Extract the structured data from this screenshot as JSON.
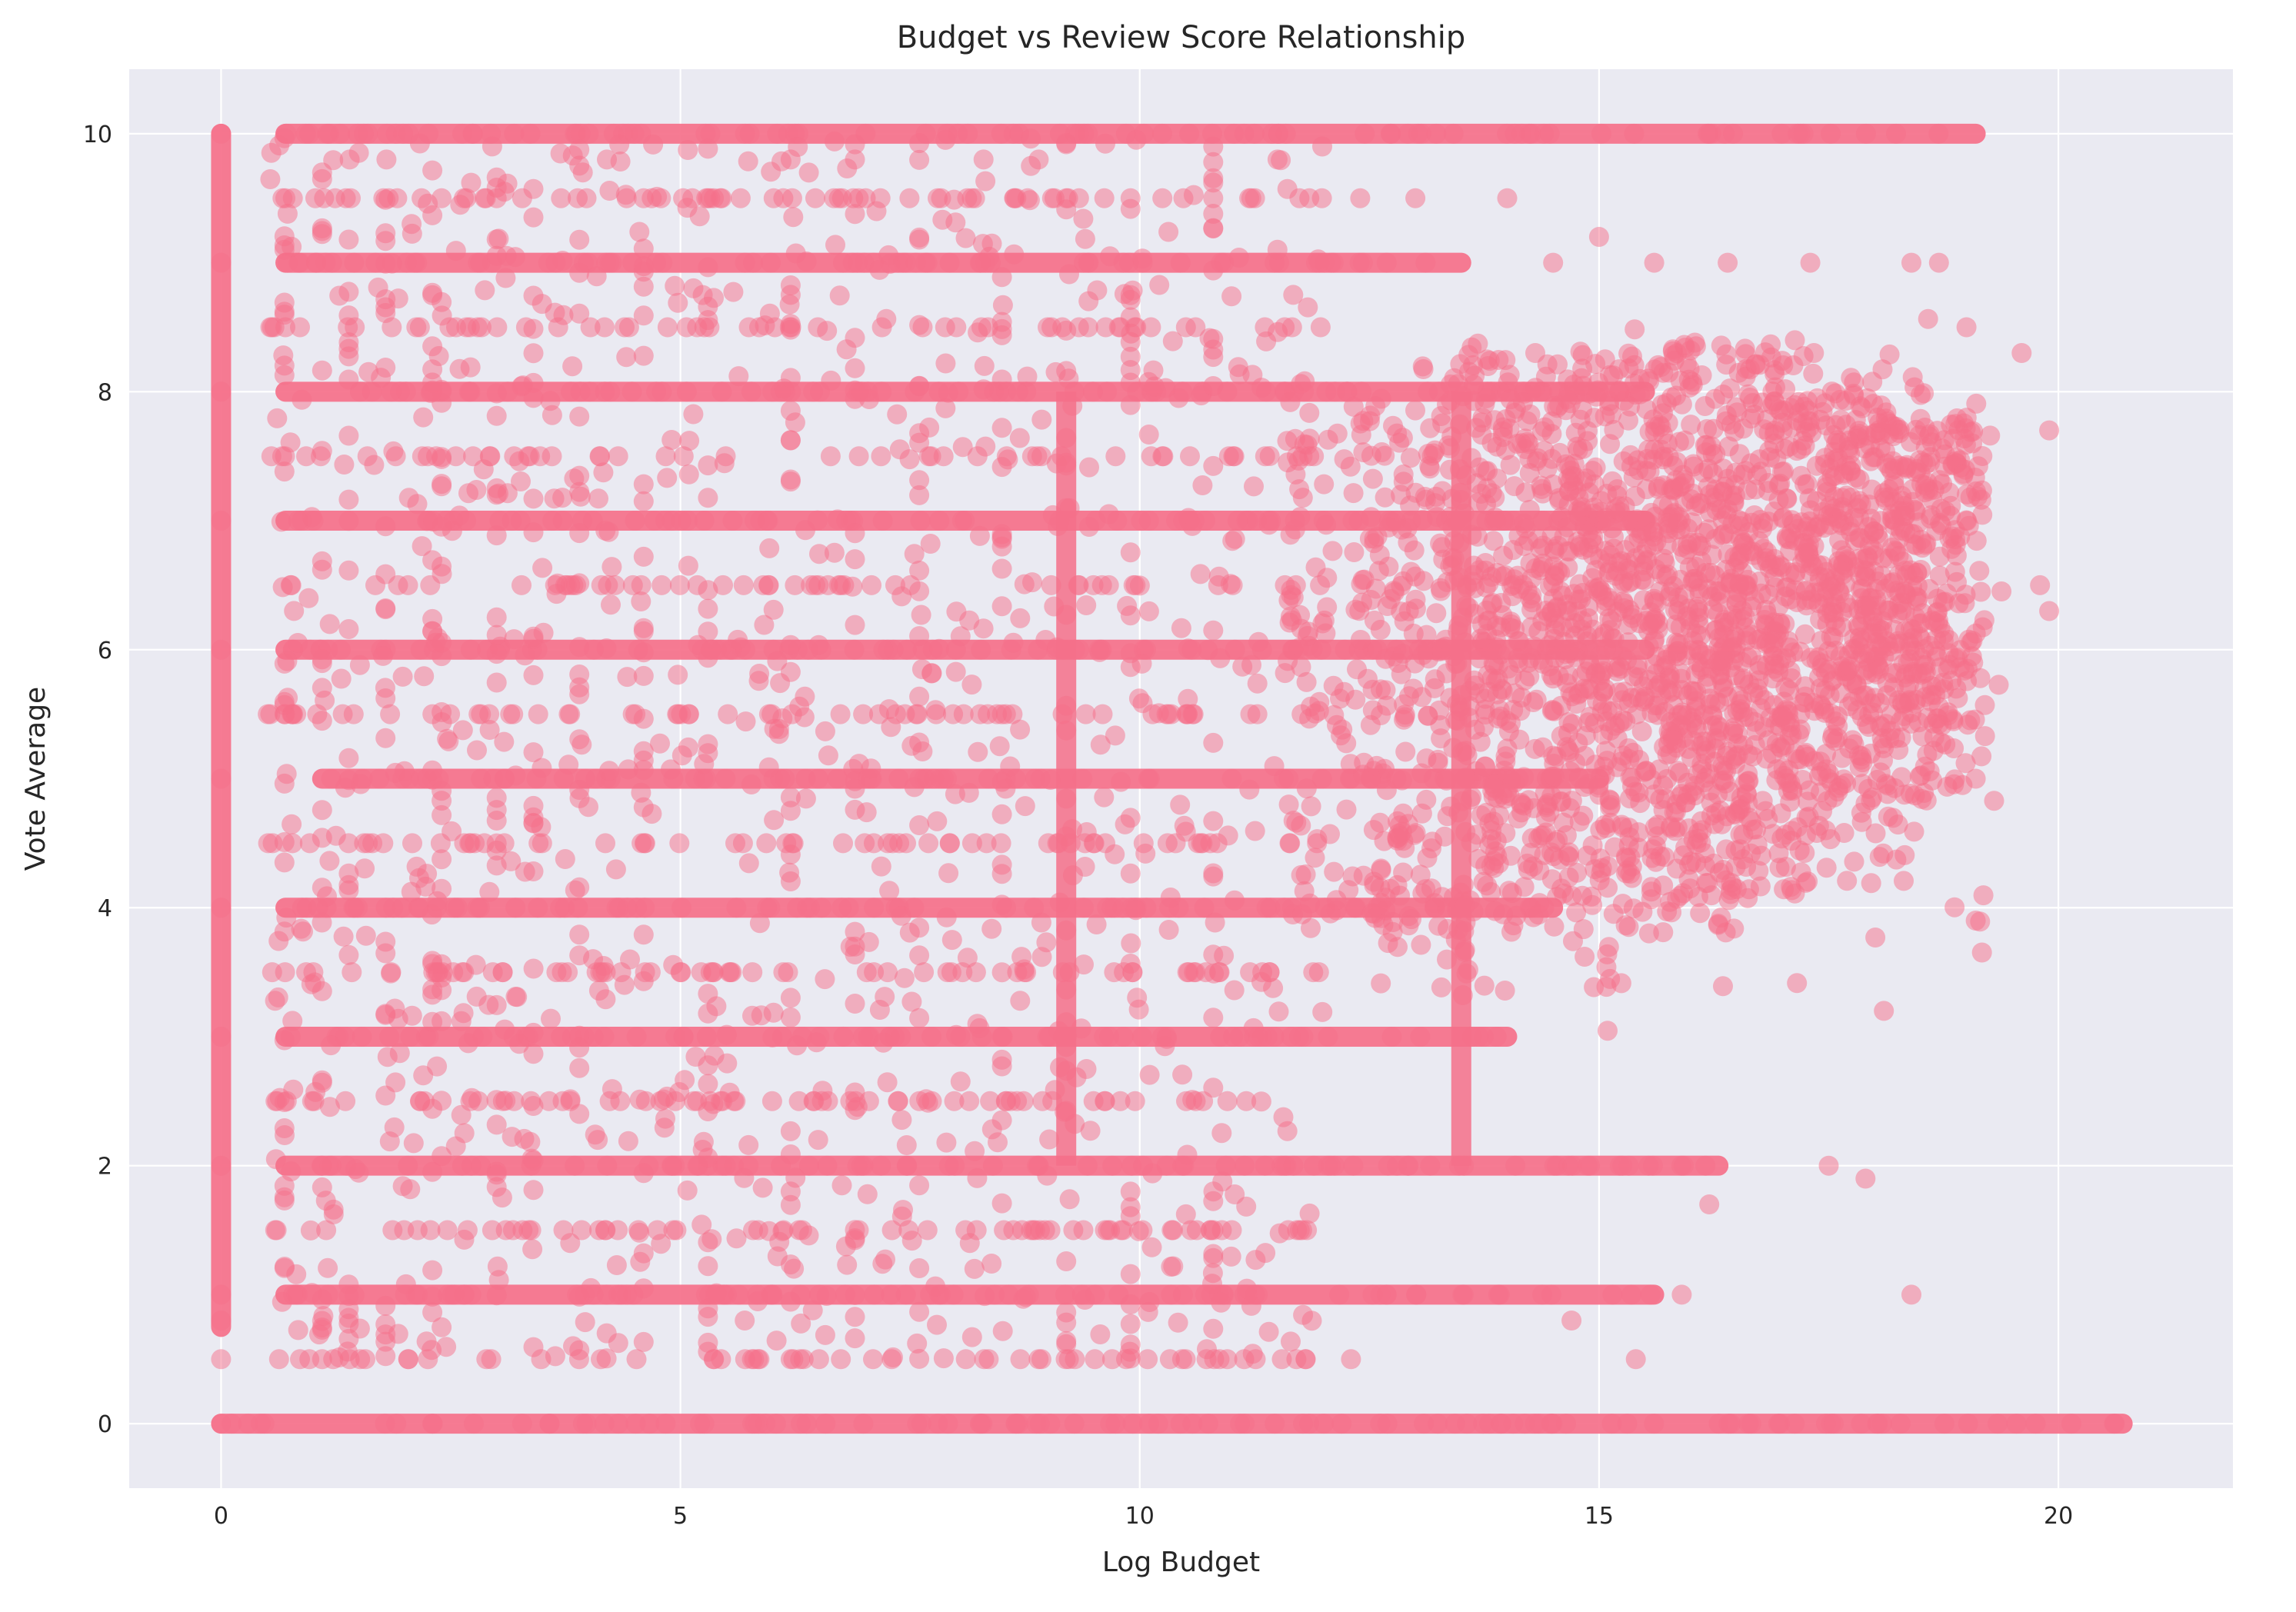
{
  "chart_data": {
    "type": "scatter",
    "title": "Budget vs Review Score Relationship",
    "xlabel": "Log Budget",
    "ylabel": "Vote Average",
    "xlim": [
      -1.0,
      21.9
    ],
    "ylim": [
      -0.5,
      10.5
    ],
    "xticks": [
      0,
      5,
      10,
      15,
      20
    ],
    "yticks": [
      0,
      2,
      4,
      6,
      8,
      10
    ],
    "xtick_labels": [
      "0",
      "5",
      "10",
      "15",
      "20"
    ],
    "ytick_labels": [
      "0",
      "2",
      "4",
      "6",
      "8",
      "10"
    ],
    "grid": true,
    "legend": "none",
    "colors": {
      "marker": "#f5708a",
      "plot_background": "#eaeaf2",
      "grid": "#ffffff",
      "text": "#262626"
    },
    "marker_alpha": 0.5,
    "zero_budget_column": {
      "x": 0,
      "y_min": 0,
      "y_max": 10,
      "description_values": [
        0,
        0.5,
        0.8,
        1,
        2,
        3,
        4,
        5,
        6,
        7,
        8,
        9,
        10
      ]
    },
    "horizontal_bands": [
      {
        "y": 0,
        "x_min": 0,
        "x_max": 20.7
      },
      {
        "y": 1,
        "x_min": 0.7,
        "x_max": 15.6
      },
      {
        "y": 2,
        "x_min": 0.7,
        "x_max": 16.3
      },
      {
        "y": 3,
        "x_min": 0.7,
        "x_max": 14.0
      },
      {
        "y": 4,
        "x_min": 0.7,
        "x_max": 14.5
      },
      {
        "y": 5,
        "x_min": 1.1,
        "x_max": 15.0
      },
      {
        "y": 6,
        "x_min": 0.7,
        "x_max": 15.5
      },
      {
        "y": 7,
        "x_min": 0.7,
        "x_max": 15.5
      },
      {
        "y": 8,
        "x_min": 0.7,
        "x_max": 15.5
      },
      {
        "y": 9,
        "x_min": 0.7,
        "x_max": 13.5
      },
      {
        "y": 10,
        "x_min": 0.7,
        "x_max": 19.1
      }
    ],
    "dense_cluster": {
      "x_center": 16.0,
      "y_center": 6.2,
      "x_range": [
        11.5,
        19.4
      ],
      "y_range": [
        3.0,
        8.6
      ]
    },
    "sample_points": [
      {
        "x": 0.7,
        "y": 9.5
      },
      {
        "x": 0.7,
        "y": 8.5
      },
      {
        "x": 1.1,
        "y": 9.7
      },
      {
        "x": 1.4,
        "y": 9.8
      },
      {
        "x": 1.8,
        "y": 9.8
      },
      {
        "x": 2.4,
        "y": 9.5
      },
      {
        "x": 3.0,
        "y": 9.5
      },
      {
        "x": 3.7,
        "y": 9.5
      },
      {
        "x": 4.2,
        "y": 9.8
      },
      {
        "x": 4.6,
        "y": 9.5
      },
      {
        "x": 5.3,
        "y": 9.5
      },
      {
        "x": 6.2,
        "y": 9.8
      },
      {
        "x": 6.9,
        "y": 9.8
      },
      {
        "x": 7.8,
        "y": 9.5
      },
      {
        "x": 8.3,
        "y": 9.8
      },
      {
        "x": 8.9,
        "y": 9.8
      },
      {
        "x": 9.2,
        "y": 9.5
      },
      {
        "x": 9.9,
        "y": 9.5
      },
      {
        "x": 10.8,
        "y": 9.5
      },
      {
        "x": 11.5,
        "y": 9.8
      },
      {
        "x": 12.4,
        "y": 9.5
      },
      {
        "x": 13.0,
        "y": 9.5
      },
      {
        "x": 14.0,
        "y": 9.5
      },
      {
        "x": 14.5,
        "y": 9.0
      },
      {
        "x": 15.0,
        "y": 9.2
      },
      {
        "x": 15.6,
        "y": 9.0
      },
      {
        "x": 16.4,
        "y": 9.0
      },
      {
        "x": 17.3,
        "y": 9.0
      },
      {
        "x": 18.4,
        "y": 9.0
      },
      {
        "x": 18.7,
        "y": 9.0
      },
      {
        "x": 19.0,
        "y": 8.5
      },
      {
        "x": 19.6,
        "y": 8.3
      },
      {
        "x": 19.9,
        "y": 7.7
      },
      {
        "x": 19.8,
        "y": 6.5
      },
      {
        "x": 19.9,
        "y": 6.3
      },
      {
        "x": 19.1,
        "y": 5.0
      },
      {
        "x": 19.1,
        "y": 3.9
      },
      {
        "x": 18.1,
        "y": 3.2
      },
      {
        "x": 17.9,
        "y": 1.9
      },
      {
        "x": 17.5,
        "y": 2.0
      },
      {
        "x": 16.2,
        "y": 1.7
      },
      {
        "x": 15.9,
        "y": 1.0
      },
      {
        "x": 15.4,
        "y": 0.5
      },
      {
        "x": 14.7,
        "y": 0.8
      },
      {
        "x": 18.4,
        "y": 1.0
      },
      {
        "x": 9.7,
        "y": 0.5
      },
      {
        "x": 10.5,
        "y": 0.5
      },
      {
        "x": 12.3,
        "y": 0.5
      },
      {
        "x": 8.7,
        "y": 0.5
      },
      {
        "x": 7.3,
        "y": 0.5
      },
      {
        "x": 6.2,
        "y": 0.5
      },
      {
        "x": 5.7,
        "y": 0.8
      },
      {
        "x": 1.1,
        "y": 0.5
      },
      {
        "x": 1.4,
        "y": 0.5
      },
      {
        "x": 2.2,
        "y": 2.7
      },
      {
        "x": 3.8,
        "y": 1.4
      },
      {
        "x": 4.1,
        "y": 2.2
      },
      {
        "x": 5.6,
        "y": 2.5
      },
      {
        "x": 6.5,
        "y": 2.2
      },
      {
        "x": 8.2,
        "y": 1.2
      }
    ]
  }
}
